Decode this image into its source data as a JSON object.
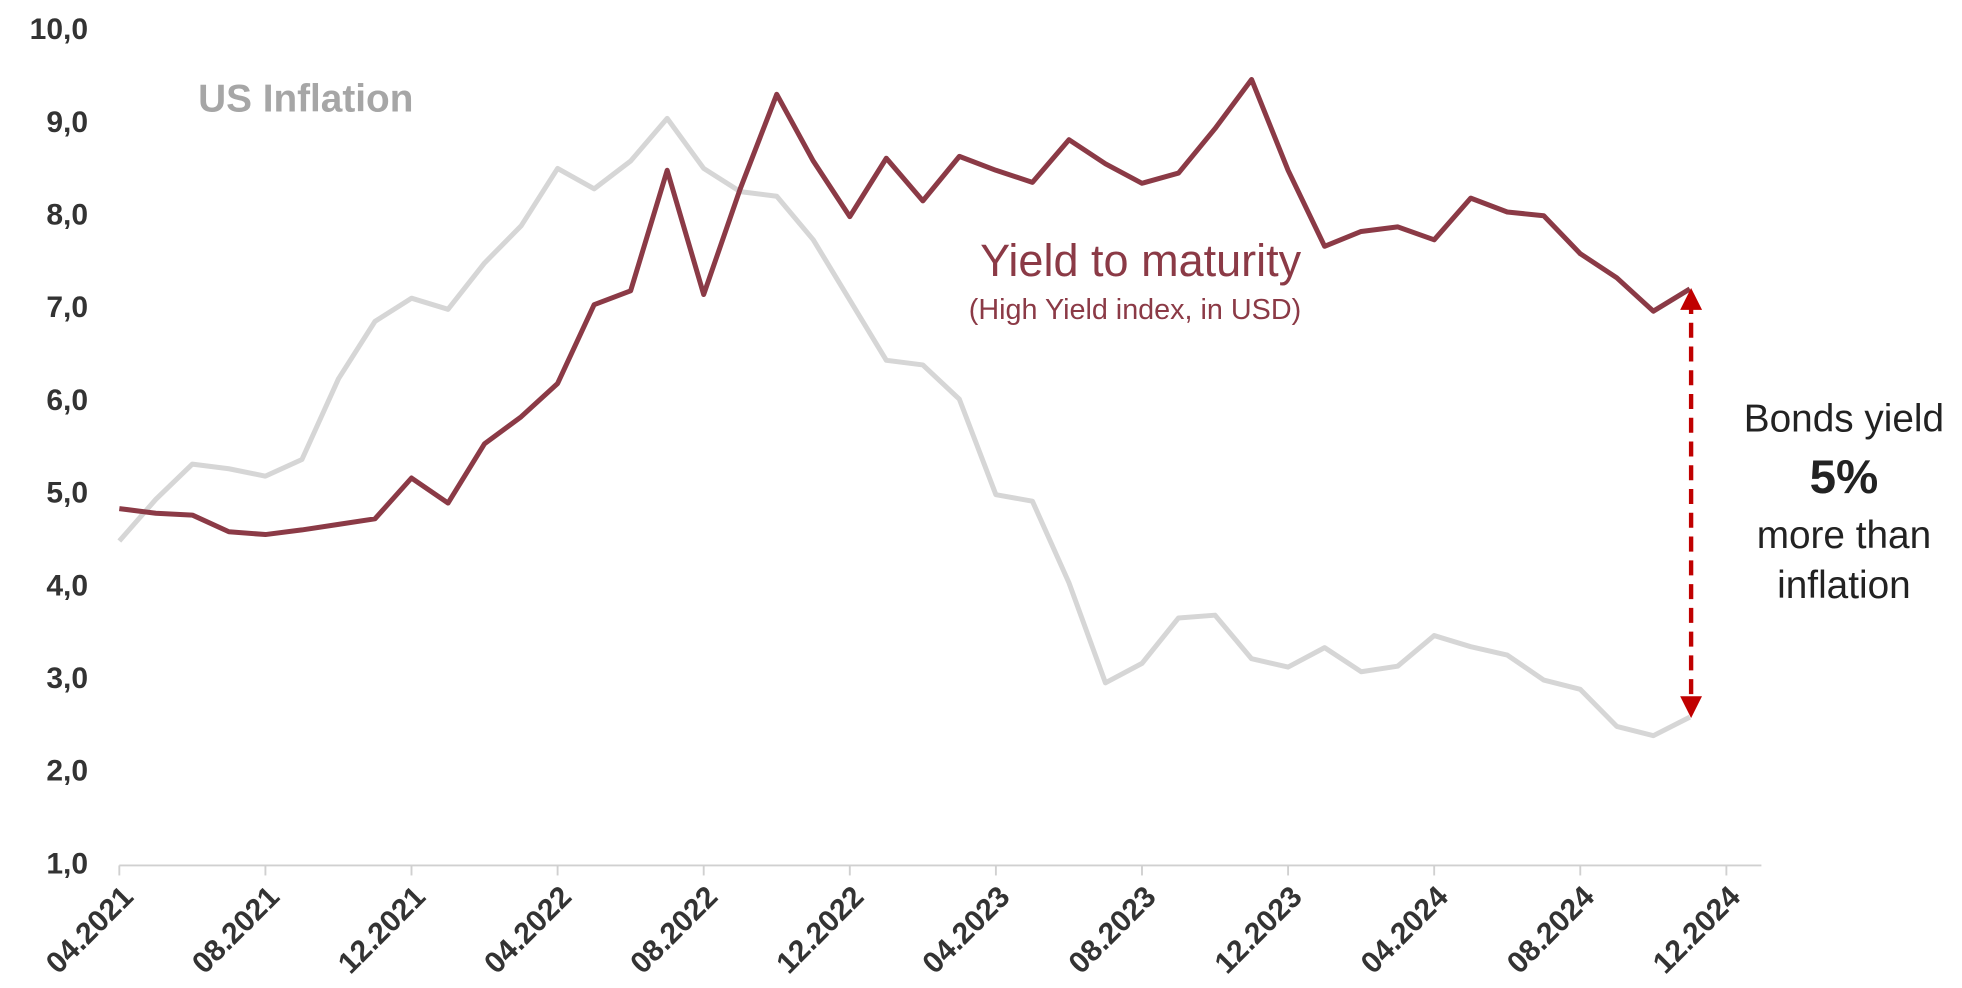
{
  "chart_data": {
    "type": "line",
    "annotations": {
      "inflation_label": "US Inflation",
      "yield_label": "Yield to maturity",
      "yield_sublabel": "(High Yield index, in USD)",
      "gap_line1": "Bonds yield",
      "gap_value": "5%",
      "gap_line2": "more than",
      "gap_line3": "inflation"
    },
    "x": [
      "04.2021",
      "05.2021",
      "06.2021",
      "07.2021",
      "08.2021",
      "09.2021",
      "10.2021",
      "11.2021",
      "12.2021",
      "01.2022",
      "02.2022",
      "03.2022",
      "04.2022",
      "05.2022",
      "06.2022",
      "07.2022",
      "08.2022",
      "09.2022",
      "10.2022",
      "11.2022",
      "12.2022",
      "01.2023",
      "02.2023",
      "03.2023",
      "04.2023",
      "05.2023",
      "06.2023",
      "07.2023",
      "08.2023",
      "09.2023",
      "10.2023",
      "11.2023",
      "12.2023",
      "01.2024",
      "02.2024",
      "03.2024",
      "04.2024",
      "05.2024",
      "06.2024",
      "07.2024",
      "08.2024",
      "09.2024",
      "10.2024",
      "11.2024"
    ],
    "series": [
      {
        "name": "US Inflation",
        "color": "#d6d6d6",
        "values": [
          4.5,
          4.95,
          5.33,
          5.28,
          5.2,
          5.38,
          6.25,
          6.87,
          7.12,
          7.0,
          7.5,
          7.9,
          8.52,
          8.3,
          8.6,
          9.06,
          8.52,
          8.27,
          8.22,
          7.75,
          7.1,
          6.45,
          6.4,
          6.03,
          5.0,
          4.93,
          4.05,
          2.97,
          3.18,
          3.67,
          3.7,
          3.23,
          3.14,
          3.35,
          3.09,
          3.15,
          3.48,
          3.36,
          3.27,
          3.0,
          2.9,
          2.5,
          2.4,
          2.6
        ]
      },
      {
        "name": "Yield to maturity",
        "color": "#8b3a46",
        "values": [
          4.85,
          4.8,
          4.78,
          4.6,
          4.57,
          4.62,
          4.68,
          4.74,
          5.18,
          4.91,
          5.55,
          5.84,
          6.2,
          7.05,
          7.2,
          8.5,
          7.16,
          8.3,
          9.32,
          8.6,
          8.0,
          8.63,
          8.17,
          8.65,
          8.5,
          8.37,
          8.83,
          8.57,
          8.36,
          8.47,
          8.95,
          9.48,
          8.5,
          7.68,
          7.84,
          7.89,
          7.75,
          8.2,
          8.05,
          8.01,
          7.6,
          7.34,
          6.98,
          7.22
        ]
      }
    ],
    "xlim": [
      "04.2021",
      "12.2024"
    ],
    "xticks": [
      "04.2021",
      "08.2021",
      "12.2021",
      "04.2022",
      "08.2022",
      "12.2022",
      "04.2023",
      "08.2023",
      "12.2023",
      "04.2024",
      "08.2024",
      "12.2024"
    ],
    "ylim": [
      1,
      10
    ],
    "yticks": [
      {
        "value": 1,
        "label": "1,0"
      },
      {
        "value": 2,
        "label": "2,0"
      },
      {
        "value": 3,
        "label": "3,0"
      },
      {
        "value": 4,
        "label": "4,0"
      },
      {
        "value": 5,
        "label": "5,0"
      },
      {
        "value": 6,
        "label": "6,0"
      },
      {
        "value": 7,
        "label": "7,0"
      },
      {
        "value": 8,
        "label": "8,0"
      },
      {
        "value": 9,
        "label": "9,0"
      },
      {
        "value": 10,
        "label": "10,0"
      }
    ],
    "arrow_color": "#c00000"
  }
}
